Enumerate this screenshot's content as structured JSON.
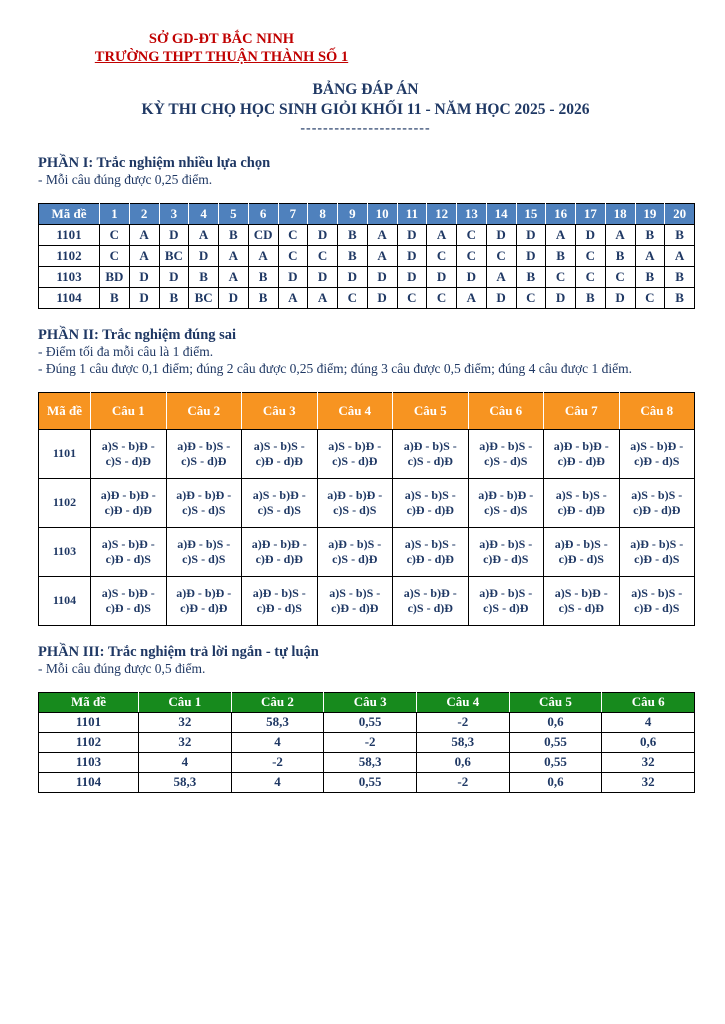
{
  "header": {
    "department": "SỞ GD-ĐT BẮC NINH",
    "school": "TRƯỜNG THPT THUẬN THÀNH SỐ 1",
    "title": "BẢNG ĐÁP ÁN",
    "subtitle": "KỲ THI CHỌ HỌC SINH GIỎI KHỐI 11 - NĂM HỌC 2025 - 2026",
    "divider": "-----------------------"
  },
  "colors": {
    "letterhead_red": "#C00000",
    "body_navy": "#1F3864",
    "part1_header_blue": "#4F81BD",
    "part2_header_orange": "#F79421",
    "part3_header_green": "#178A1D"
  },
  "part1": {
    "heading": "PHẦN I: Trắc nghiệm nhiều lựa chọn",
    "notes": [
      "- Mỗi câu đúng được 0,25 điểm."
    ],
    "table": {
      "headers": [
        "Mã đề",
        "1",
        "2",
        "3",
        "4",
        "5",
        "6",
        "7",
        "8",
        "9",
        "10",
        "11",
        "12",
        "13",
        "14",
        "15",
        "16",
        "17",
        "18",
        "19",
        "20"
      ],
      "rows": [
        [
          "1101",
          "C",
          "A",
          "D",
          "A",
          "B",
          "CD",
          "C",
          "D",
          "B",
          "A",
          "D",
          "A",
          "C",
          "D",
          "D",
          "A",
          "D",
          "A",
          "B",
          "B"
        ],
        [
          "1102",
          "C",
          "A",
          "BC",
          "D",
          "A",
          "A",
          "C",
          "C",
          "B",
          "A",
          "D",
          "C",
          "C",
          "C",
          "D",
          "B",
          "C",
          "B",
          "A",
          "A"
        ],
        [
          "1103",
          "BD",
          "D",
          "D",
          "B",
          "A",
          "B",
          "D",
          "D",
          "D",
          "D",
          "D",
          "D",
          "D",
          "A",
          "B",
          "C",
          "C",
          "C",
          "B",
          "B"
        ],
        [
          "1104",
          "B",
          "D",
          "B",
          "BC",
          "D",
          "B",
          "A",
          "A",
          "C",
          "D",
          "C",
          "C",
          "A",
          "D",
          "C",
          "D",
          "B",
          "D",
          "C",
          "B"
        ]
      ]
    }
  },
  "part2": {
    "heading": "PHẦN II: Trắc nghiệm đúng sai",
    "notes": [
      "- Điểm tối đa mỗi câu là 1 điểm.",
      "- Đúng 1 câu được 0,1 điểm; đúng 2 câu được 0,25 điểm; đúng 3 câu được 0,5 điểm; đúng 4 câu được 1 điểm."
    ],
    "table": {
      "headers": [
        "Mã đề",
        "Câu 1",
        "Câu 2",
        "Câu 3",
        "Câu 4",
        "Câu 5",
        "Câu 6",
        "Câu 7",
        "Câu 8"
      ],
      "rows": [
        [
          "1101",
          "a)S - b)Đ - c)S - d)Đ",
          "a)Đ - b)S - c)S - d)Đ",
          "a)S - b)S - c)Đ - d)Đ",
          "a)S - b)Đ - c)S - d)Đ",
          "a)Đ - b)S - c)S - d)Đ",
          "a)Đ - b)S - c)S - d)S",
          "a)Đ - b)Đ - c)Đ - d)Đ",
          "a)S - b)Đ - c)Đ - d)S"
        ],
        [
          "1102",
          "a)Đ - b)Đ - c)Đ - d)Đ",
          "a)Đ - b)Đ - c)S - d)S",
          "a)S - b)Đ - c)S - d)S",
          "a)Đ - b)Đ - c)S - d)S",
          "a)S - b)S - c)Đ - d)Đ",
          "a)Đ - b)Đ - c)S - d)S",
          "a)S - b)S - c)Đ - d)Đ",
          "a)S - b)S - c)Đ - d)Đ"
        ],
        [
          "1103",
          "a)S - b)Đ - c)Đ - d)S",
          "a)Đ - b)S - c)S - d)S",
          "a)Đ - b)Đ - c)Đ - d)Đ",
          "a)Đ - b)S - c)S - d)Đ",
          "a)S - b)S - c)Đ - d)Đ",
          "a)Đ - b)S - c)Đ - d)S",
          "a)Đ - b)S - c)Đ - d)S",
          "a)Đ - b)S - c)Đ - d)S"
        ],
        [
          "1104",
          "a)S - b)Đ - c)Đ - d)S",
          "a)Đ - b)Đ - c)Đ - d)Đ",
          "a)Đ - b)S - c)Đ - d)S",
          "a)S - b)S - c)Đ - d)Đ",
          "a)S - b)Đ - c)S - d)Đ",
          "a)Đ - b)S - c)S - d)Đ",
          "a)S - b)Đ - c)S - d)Đ",
          "a)S - b)S - c)Đ - d)S"
        ]
      ]
    }
  },
  "part3": {
    "heading": "PHẦN III: Trắc nghiệm trả lời ngắn - tự luận",
    "notes": [
      "- Mỗi câu đúng được 0,5 điểm."
    ],
    "table": {
      "headers": [
        "Mã đề",
        "Câu 1",
        "Câu 2",
        "Câu 3",
        "Câu 4",
        "Câu 5",
        "Câu 6"
      ],
      "rows": [
        [
          "1101",
          "32",
          "58,3",
          "0,55",
          "-2",
          "0,6",
          "4"
        ],
        [
          "1102",
          "32",
          "4",
          "-2",
          "58,3",
          "0,55",
          "0,6"
        ],
        [
          "1103",
          "4",
          "-2",
          "58,3",
          "0,6",
          "0,55",
          "32"
        ],
        [
          "1104",
          "58,3",
          "4",
          "0,55",
          "-2",
          "0,6",
          "32"
        ]
      ]
    }
  }
}
